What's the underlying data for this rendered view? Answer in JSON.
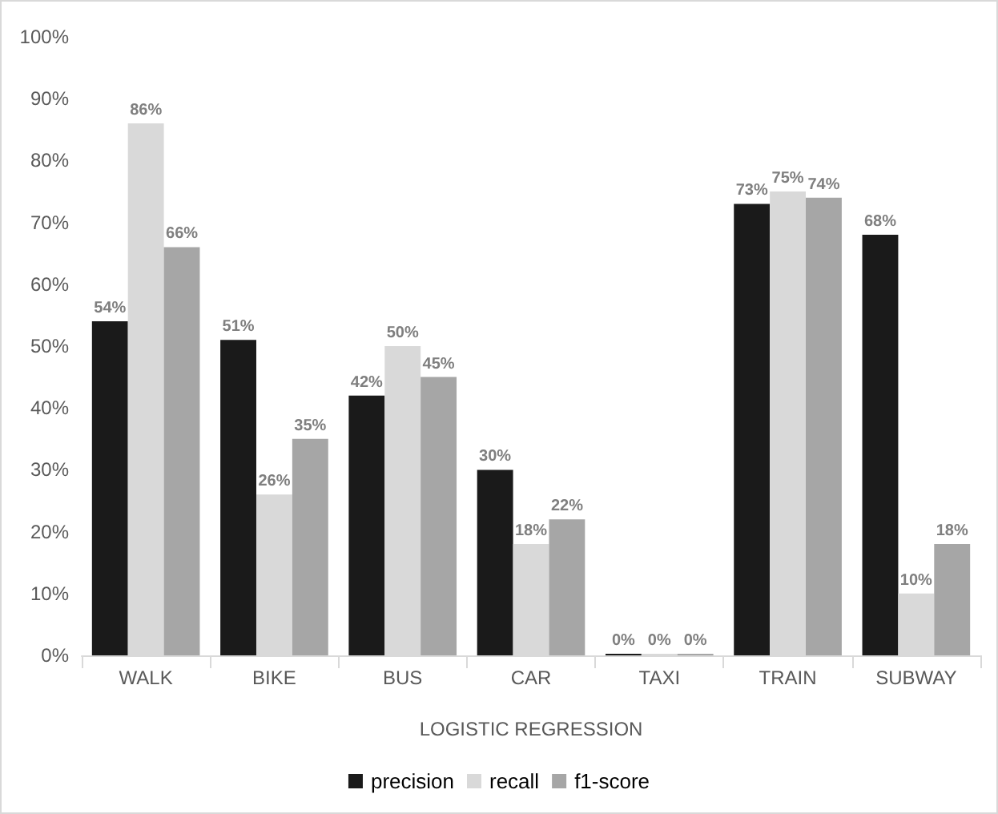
{
  "chart_data": {
    "type": "bar",
    "xlabel": "LOGISTIC REGRESSION",
    "categories": [
      "WALK",
      "BIKE",
      "BUS",
      "CAR",
      "TAXI",
      "TRAIN",
      "SUBWAY"
    ],
    "series": [
      {
        "name": "precision",
        "color": "#1a1a1a",
        "values": [
          54,
          51,
          42,
          30,
          0,
          73,
          68
        ],
        "value_labels": [
          "54%",
          "51%",
          "42%",
          "30%",
          "0%",
          "73%",
          "68%"
        ]
      },
      {
        "name": "recall",
        "color": "#d9d9d9",
        "values": [
          86,
          26,
          50,
          18,
          0,
          75,
          10
        ],
        "value_labels": [
          "86%",
          "26%",
          "50%",
          "18%",
          "0%",
          "75%",
          "10%"
        ]
      },
      {
        "name": "f1-score",
        "color": "#a6a6a6",
        "values": [
          66,
          35,
          45,
          22,
          0,
          74,
          18
        ],
        "value_labels": [
          "66%",
          "35%",
          "45%",
          "22%",
          "0%",
          "74%",
          "18%"
        ]
      }
    ],
    "ylim": [
      0,
      100
    ],
    "yticks": [
      {
        "value": 0,
        "label": "0%"
      },
      {
        "value": 10,
        "label": "10%"
      },
      {
        "value": 20,
        "label": "20%"
      },
      {
        "value": 30,
        "label": "30%"
      },
      {
        "value": 40,
        "label": "40%"
      },
      {
        "value": 50,
        "label": "50%"
      },
      {
        "value": 60,
        "label": "60%"
      },
      {
        "value": 70,
        "label": "70%"
      },
      {
        "value": 80,
        "label": "80%"
      },
      {
        "value": 90,
        "label": "90%"
      },
      {
        "value": 100,
        "label": "100%"
      }
    ],
    "grid": false,
    "legend": "bottom"
  }
}
